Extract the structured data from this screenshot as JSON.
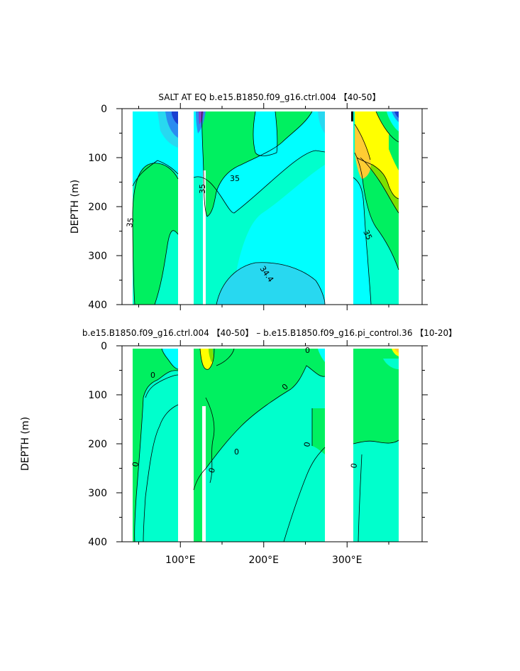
{
  "chart_data": [
    {
      "type": "heatmap",
      "subtype": "filled-contour depth section",
      "title": "SALT AT EQ b.e15.B1850.f09_g16.ctrl.004 【40-50】",
      "ylabel": "DEPTH (m)",
      "xlabel": "",
      "x_tick_labels": [],
      "y_ticks": [
        0,
        100,
        200,
        300,
        400
      ],
      "y_tick_labels": [
        "0",
        "100",
        "200",
        "300",
        "400"
      ],
      "ylim": [
        0,
        400
      ],
      "y_inverted": true,
      "xlim": [
        30,
        390
      ],
      "contour_labels": [
        "35",
        "35",
        "35",
        "34.4",
        "35"
      ],
      "land_masks_lon": [
        [
          40,
          44
        ],
        [
          100,
          119
        ],
        [
          131,
          133
        ],
        [
          279,
          314
        ],
        [
          367,
          390
        ]
      ],
      "colors": {
        "deep_blue": "#1a3fd0",
        "blue": "#2a8cf0",
        "cyan": "#00ffff",
        "light_cyan": "#28d8f0",
        "aqua": "#00ffcc",
        "green": "#00f060",
        "lime": "#7de000",
        "yellow": "#ffff00",
        "orange": "#ffcc33"
      }
    },
    {
      "type": "heatmap",
      "subtype": "filled-contour depth section (difference)",
      "title": "b.e15.B1850.f09_g16.ctrl.004 【40-50】 – b.e15.B1850.f09_g16.pi_control.36 【10-20】",
      "ylabel": "DEPTH (m)",
      "xlabel": "",
      "x_ticks": [
        100,
        200,
        300
      ],
      "x_tick_labels": [
        "100°E",
        "200°E",
        "300°E"
      ],
      "y_ticks": [
        0,
        100,
        200,
        300,
        400
      ],
      "y_tick_labels": [
        "0",
        "100",
        "200",
        "300",
        "400"
      ],
      "ylim": [
        0,
        400
      ],
      "y_inverted": true,
      "xlim": [
        30,
        390
      ],
      "contour_labels": [
        "0",
        "0",
        "0",
        "0",
        "0",
        "0",
        "0",
        "0"
      ],
      "land_masks_lon": [
        [
          40,
          44
        ],
        [
          100,
          119
        ],
        [
          131,
          133
        ],
        [
          279,
          314
        ],
        [
          367,
          390
        ]
      ],
      "colors": {
        "aqua": "#00ffcc",
        "green": "#00f060",
        "cyan": "#00ffff",
        "blue": "#2a8cf0",
        "yellow": "#ffff00",
        "lime": "#7de000",
        "orange": "#ffcc33"
      }
    }
  ]
}
